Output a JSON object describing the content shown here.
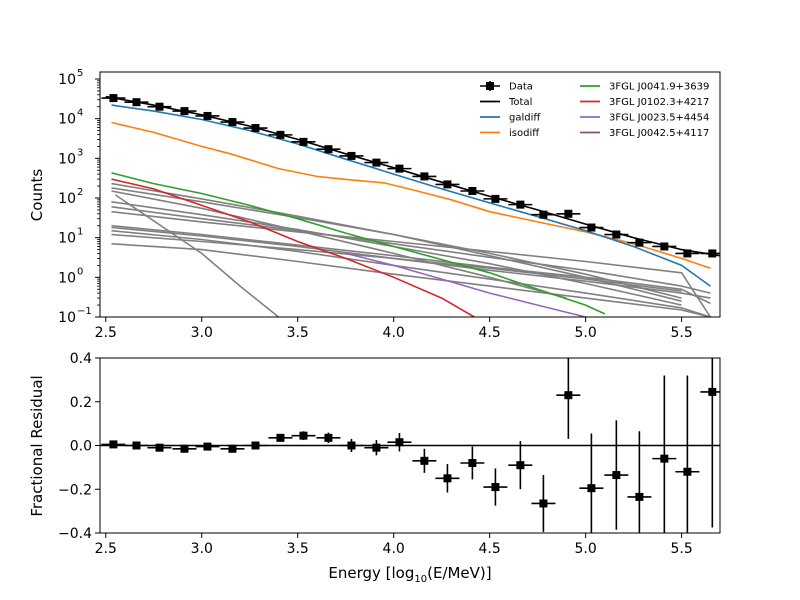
{
  "chart_data": [
    {
      "panel": "top",
      "type": "line",
      "yscale": "log",
      "ylabel": "Counts",
      "xlim": [
        2.47,
        5.7
      ],
      "ylim": [
        0.1,
        150000
      ],
      "xticks": [
        "2.5",
        "3.0",
        "3.5",
        "4.0",
        "4.5",
        "5.0",
        "5.5"
      ],
      "yticks": [
        {
          "value": 0.1,
          "mantissa": "10",
          "exponent": "−1"
        },
        {
          "value": 1,
          "mantissa": "10",
          "exponent": "0"
        },
        {
          "value": 10,
          "mantissa": "10",
          "exponent": "1"
        },
        {
          "value": 100,
          "mantissa": "10",
          "exponent": "2"
        },
        {
          "value": 1000,
          "mantissa": "10",
          "exponent": "3"
        },
        {
          "value": 10000,
          "mantissa": "10",
          "exponent": "4"
        },
        {
          "value": 100000,
          "mantissa": "10",
          "exponent": "5"
        }
      ],
      "legend_placement": "upper-right",
      "legend": [
        {
          "label": "Data",
          "color": "#000000",
          "kind": "errorbar"
        },
        {
          "label": "Total",
          "color": "#000000",
          "kind": "line"
        },
        {
          "label": "galdiff",
          "color": "#1f77b4",
          "kind": "line"
        },
        {
          "label": "isodiff",
          "color": "#ff7f0e",
          "kind": "line"
        },
        {
          "label": "3FGL J0041.9+3639",
          "color": "#2ca02c",
          "kind": "line"
        },
        {
          "label": "3FGL J0102.3+4217",
          "color": "#d62728",
          "kind": "line"
        },
        {
          "label": "3FGL J0023.5+4454",
          "color": "#9467bd",
          "kind": "line"
        },
        {
          "label": "3FGL J0042.5+4117",
          "color": "#8c564b",
          "kind": "line"
        }
      ],
      "data_points": {
        "x": [
          2.54,
          2.66,
          2.78,
          2.91,
          3.03,
          3.16,
          3.28,
          3.41,
          3.53,
          3.66,
          3.78,
          3.91,
          4.03,
          4.16,
          4.28,
          4.41,
          4.53,
          4.66,
          4.78,
          4.91,
          5.03,
          5.16,
          5.28,
          5.41,
          5.53,
          5.66
        ],
        "y": [
          33000,
          26000,
          20000,
          15500,
          11700,
          8200,
          5800,
          3900,
          2600,
          1700,
          1150,
          780,
          550,
          350,
          220,
          150,
          95,
          68,
          38,
          40,
          18,
          12,
          7.5,
          6,
          4,
          4
        ],
        "x_halfwidth": 0.0625
      },
      "series": [
        {
          "name": "Total",
          "color": "#000000",
          "x": [
            2.5,
            2.75,
            3.0,
            3.25,
            3.5,
            3.75,
            4.0,
            4.25,
            4.5,
            4.75,
            5.0,
            5.25,
            5.5,
            5.7
          ],
          "y": [
            36000,
            22000,
            12500,
            6500,
            3000,
            1300,
            580,
            250,
            110,
            50,
            22,
            10,
            5,
            3.5
          ]
        },
        {
          "name": "galdiff",
          "color": "#1f77b4",
          "x": [
            2.53,
            2.75,
            3.0,
            3.25,
            3.5,
            3.75,
            4.0,
            4.25,
            4.5,
            4.75,
            5.0,
            5.25,
            5.5,
            5.65
          ],
          "y": [
            22000,
            15500,
            9500,
            5000,
            2300,
            950,
            400,
            170,
            75,
            34,
            15,
            6,
            2,
            0.6
          ]
        },
        {
          "name": "isodiff",
          "color": "#ff7f0e",
          "x": [
            2.53,
            2.75,
            3.0,
            3.15,
            3.4,
            3.6,
            3.8,
            3.95,
            4.1,
            4.3,
            4.5,
            4.75,
            5.0,
            5.25,
            5.5,
            5.65
          ],
          "y": [
            8000,
            4500,
            2000,
            1300,
            550,
            350,
            280,
            240,
            160,
            90,
            45,
            25,
            14,
            7,
            3,
            1.7
          ]
        },
        {
          "name": "3FGL J0041.9+3639",
          "color": "#2ca02c",
          "x": [
            2.53,
            2.75,
            3.0,
            3.25,
            3.5,
            3.75,
            4.0,
            4.25,
            4.5,
            4.75,
            5.0,
            5.1
          ],
          "y": [
            430,
            230,
            130,
            65,
            30,
            13,
            6,
            2.8,
            1.3,
            0.5,
            0.2,
            0.12
          ]
        },
        {
          "name": "3FGL J0102.3+4217",
          "color": "#d62728",
          "x": [
            2.53,
            2.75,
            3.0,
            3.25,
            3.5,
            3.75,
            4.0,
            4.25,
            4.42
          ],
          "y": [
            300,
            170,
            65,
            25,
            8,
            3,
            1,
            0.3,
            0.1
          ]
        },
        {
          "name": "3FGL J0023.5+4454",
          "color": "#9467bd",
          "x": [
            3.75,
            4.0,
            4.25,
            4.5,
            4.75,
            5.0
          ],
          "y": [
            4,
            2,
            0.9,
            0.4,
            0.2,
            0.1
          ]
        }
      ],
      "other_sources": {
        "color": "#808080",
        "lines": [
          {
            "x": [
              2.53,
              3.0,
              3.5,
              4.0,
              4.5,
              5.0,
              5.5,
              5.65
            ],
            "y": [
              7,
              5,
              2.5,
              1.2,
              0.6,
              0.3,
              0.15,
              0.1
            ]
          },
          {
            "x": [
              2.53,
              3.0,
              3.5,
              4.0,
              4.5,
              5.0,
              5.5,
              5.65
            ],
            "y": [
              15,
              9,
              4.5,
              2,
              0.9,
              0.4,
              0.17,
              0.1
            ]
          },
          {
            "x": [
              2.53,
              3.0,
              3.5,
              4.0,
              4.5,
              5.0,
              5.5,
              5.65
            ],
            "y": [
              18,
              11,
              6,
              3,
              1.5,
              0.8,
              0.4,
              0.3
            ]
          },
          {
            "x": [
              2.53,
              3.0,
              3.5,
              4.0,
              4.5,
              5.0,
              5.5,
              5.65
            ],
            "y": [
              20,
              12,
              6.5,
              3.5,
              1.8,
              1.0,
              0.5,
              0.22
            ]
          },
          {
            "x": [
              2.53,
              3.0,
              3.5,
              4.0,
              4.5,
              5.0,
              5.5,
              5.65
            ],
            "y": [
              45,
              25,
              14,
              8,
              4.5,
              2.5,
              1.3,
              0.1
            ]
          },
          {
            "x": [
              2.53,
              3.0,
              3.5,
              4.0,
              4.5,
              5.0,
              5.5,
              5.65
            ],
            "y": [
              60,
              30,
              15,
              7,
              3.2,
              1.5,
              0.6,
              0.4
            ]
          },
          {
            "x": [
              2.53,
              3.0,
              3.5,
              4.0,
              4.5,
              5.0,
              5.5
            ],
            "y": [
              80,
              38,
              16,
              6,
              2.2,
              0.7,
              0.2
            ]
          },
          {
            "x": [
              2.53,
              3.0,
              3.5,
              4.0,
              4.5,
              4.9
            ],
            "y": [
              150,
              55,
              15,
              4,
              1,
              0.3
            ]
          },
          {
            "x": [
              2.53,
              3.0,
              3.5,
              4.0,
              4.5,
              5.0,
              5.5
            ],
            "y": [
              180,
              80,
              32,
              12,
              4,
              1.2,
              0.3
            ]
          },
          {
            "x": [
              2.53,
              3.0,
              3.5,
              4.0,
              4.5,
              5.0,
              5.5
            ],
            "y": [
              230,
              95,
              35,
              12,
              3.5,
              1,
              0.25
            ]
          },
          {
            "x": [
              2.53,
              3.0,
              3.5,
              4.0,
              4.5,
              5.0,
              5.5
            ],
            "y": [
              12,
              8,
              5,
              3,
              1.7,
              0.9,
              0.45
            ]
          },
          {
            "x": [
              2.55,
              3.0,
              3.2,
              3.4
            ],
            "y": [
              120,
              4,
              0.6,
              0.1
            ]
          }
        ]
      }
    },
    {
      "panel": "bottom",
      "type": "scatter",
      "xlabel_main": "Energy [log",
      "xlabel_sub": "10",
      "xlabel_rest": "(E/MeV)]",
      "ylabel": "Fractional Residual",
      "xlim": [
        2.47,
        5.7
      ],
      "ylim": [
        -0.4,
        0.4
      ],
      "xticks": [
        "2.5",
        "3.0",
        "3.5",
        "4.0",
        "4.5",
        "5.0",
        "5.5"
      ],
      "yticks": [
        "−0.4",
        "−0.2",
        "0.0",
        "0.2",
        "0.4"
      ],
      "ytick_values": [
        -0.4,
        -0.2,
        0.0,
        0.2,
        0.4
      ],
      "x": [
        2.54,
        2.66,
        2.78,
        2.91,
        3.03,
        3.16,
        3.28,
        3.41,
        3.53,
        3.66,
        3.78,
        3.91,
        4.03,
        4.16,
        4.28,
        4.41,
        4.53,
        4.66,
        4.78,
        4.91,
        5.03,
        5.16,
        5.28,
        5.41,
        5.53,
        5.66
      ],
      "y": [
        0.005,
        0.0,
        -0.01,
        -0.015,
        -0.005,
        -0.015,
        0.0,
        0.035,
        0.045,
        0.035,
        0.0,
        -0.01,
        0.015,
        -0.07,
        -0.15,
        -0.08,
        -0.19,
        -0.09,
        -0.265,
        0.23,
        -0.195,
        -0.135,
        -0.235,
        -0.06,
        -0.12,
        0.245
      ],
      "yerr": [
        0.006,
        0.006,
        0.007,
        0.008,
        0.009,
        0.011,
        0.013,
        0.016,
        0.02,
        0.024,
        0.03,
        0.035,
        0.042,
        0.055,
        0.065,
        0.075,
        0.085,
        0.11,
        0.13,
        0.2,
        0.25,
        0.25,
        0.3,
        0.38,
        0.44,
        0.62
      ],
      "x_halfwidth": 0.0625
    }
  ]
}
